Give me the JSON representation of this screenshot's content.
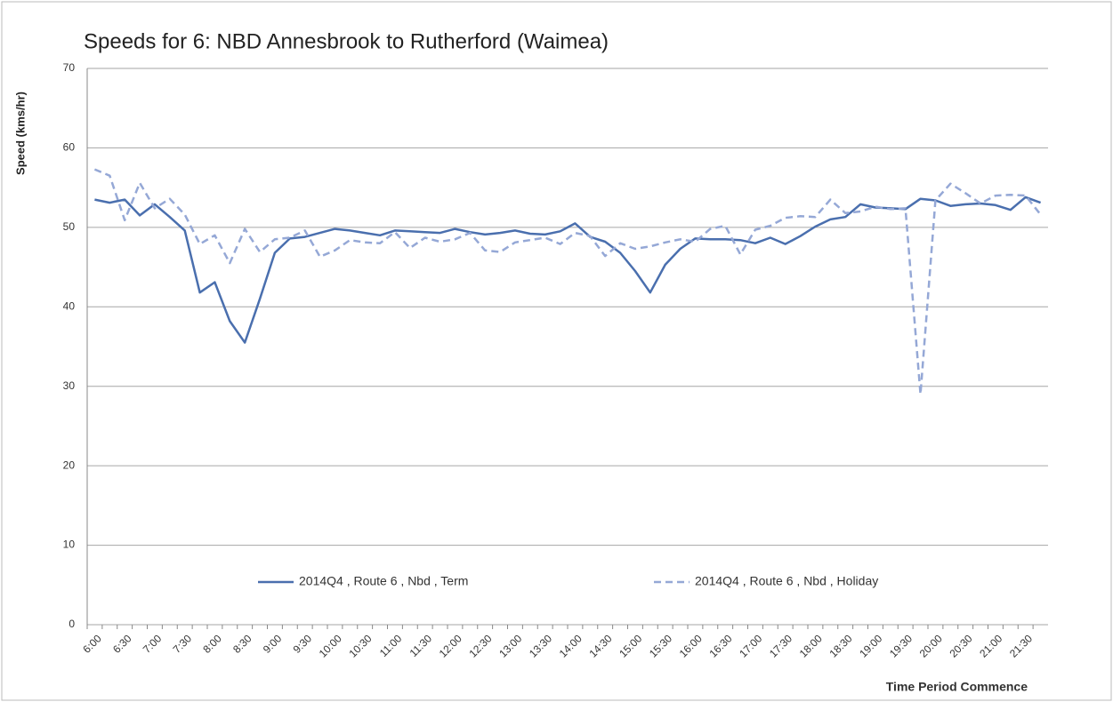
{
  "chart_data": {
    "type": "line",
    "title": "Speeds for 6: NBD Annesbrook to Rutherford (Waimea)",
    "y_label": "Speed (kms/hr)",
    "x_label": "Time Period Commence",
    "categories": [
      "6:00",
      null,
      "6:30",
      null,
      "7:00",
      null,
      "7:30",
      null,
      "8:00",
      null,
      "8:30",
      null,
      "9:00",
      null,
      "9:30",
      null,
      "10:00",
      null,
      "10:30",
      null,
      "11:00",
      null,
      "11:30",
      null,
      "12:00",
      null,
      "12:30",
      null,
      "13:00",
      null,
      "13:30",
      null,
      "14:00",
      null,
      "14:30",
      null,
      "15:00",
      null,
      "15:30",
      null,
      "16:00",
      null,
      "16:30",
      null,
      "17:00",
      null,
      "17:30",
      null,
      "18:00",
      null,
      "18:30",
      null,
      "19:00",
      null,
      "19:30",
      null,
      "20:00",
      null,
      "20:30",
      null,
      "21:00",
      null,
      "21:30",
      null
    ],
    "series": [
      {
        "name": "2014Q4 , Route 6 , Nbd , Term",
        "color": "#4a6fae",
        "dash": false,
        "values": [
          53.5,
          53.1,
          53.5,
          51.5,
          52.9,
          51.3,
          49.6,
          41.8,
          43.1,
          38.2,
          35.5,
          41,
          46.8,
          48.6,
          48.8,
          49.3,
          49.8,
          49.6,
          49.3,
          49.0,
          49.6,
          49.5,
          49.4,
          49.3,
          49.8,
          49.4,
          49.1,
          49.3,
          49.6,
          49.2,
          49.1,
          49.5,
          50.5,
          48.8,
          48.2,
          46.8,
          44.5,
          41.8,
          45.3,
          47.3,
          48.6,
          48.5,
          48.5,
          48.4,
          48.0,
          48.7,
          47.9,
          48.9,
          50.1,
          51.0,
          51.3,
          52.9,
          52.5,
          52.4,
          52.3,
          53.6,
          53.4,
          52.7,
          52.9,
          53.0,
          52.8,
          52.2,
          53.8,
          53.1
        ]
      },
      {
        "name": "2014Q4 , Route 6 , Nbd , Holiday",
        "color": "#95a8d6",
        "dash": true,
        "values": [
          57.3,
          56.5,
          50.9,
          55.6,
          52.4,
          53.6,
          51.6,
          47.9,
          49.0,
          45.5,
          49.8,
          46.9,
          48.5,
          48.7,
          49.6,
          46.3,
          47.1,
          48.4,
          48.1,
          48.0,
          49.4,
          47.4,
          48.7,
          48.2,
          48.5,
          49.3,
          47.1,
          46.9,
          48.1,
          48.4,
          48.7,
          47.9,
          49.3,
          48.9,
          46.4,
          48.0,
          47.3,
          47.6,
          48.1,
          48.5,
          48.2,
          49.8,
          50.2,
          46.6,
          49.7,
          50.2,
          51.2,
          51.4,
          51.3,
          53.5,
          51.8,
          52.0,
          52.6,
          52.3,
          52.4,
          29.0,
          53.4,
          55.5,
          54.3,
          53.0,
          54.0,
          54.1,
          54.0,
          51.6
        ]
      }
    ],
    "ylim": [
      0,
      70
    ],
    "yticks": [
      0,
      10,
      20,
      30,
      40,
      50,
      60,
      70
    ],
    "grid": true
  }
}
